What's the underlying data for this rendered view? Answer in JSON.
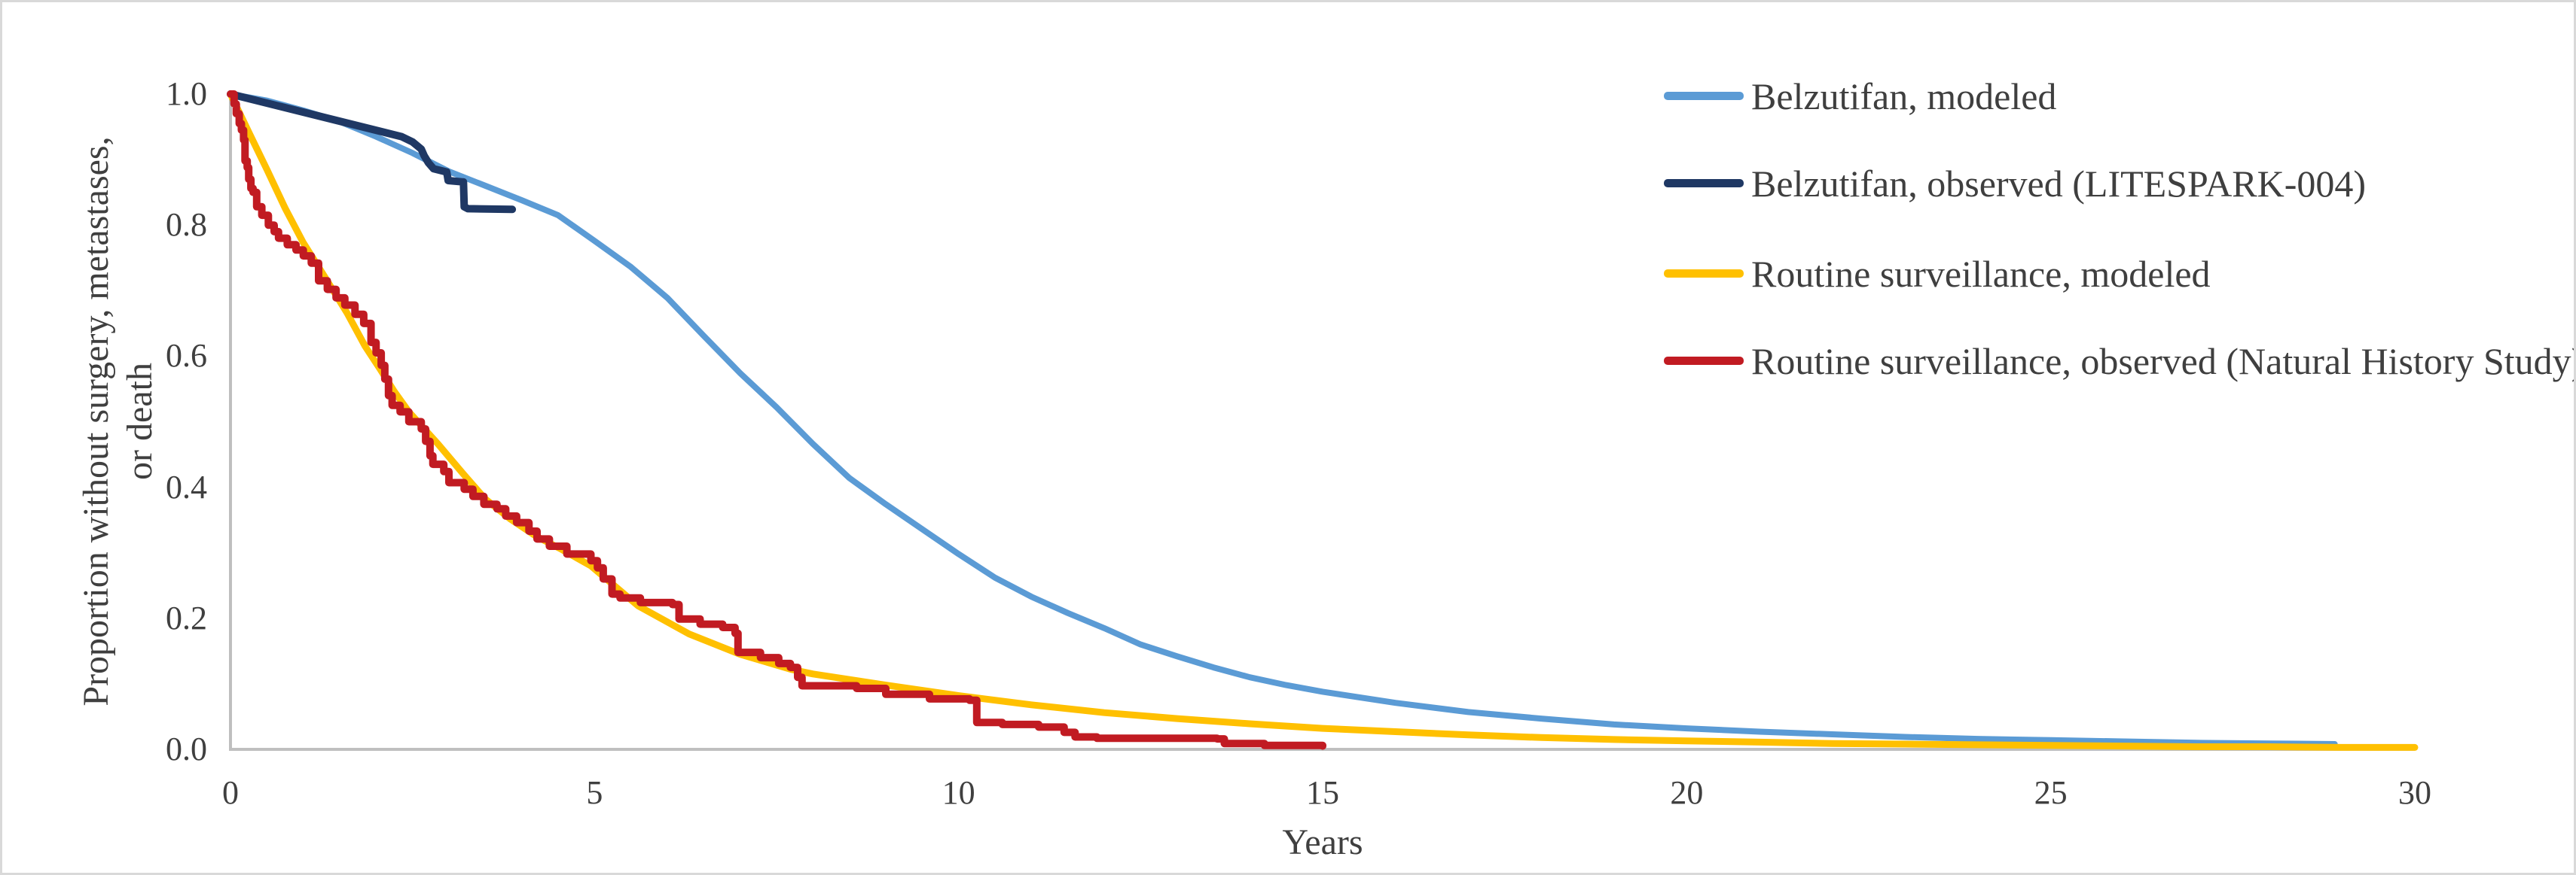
{
  "figure": {
    "background_color": "#ffffff",
    "border_color": "#d9d9d9",
    "axis_line_color": "#bfbfbf",
    "text_color": "#3f3f3f"
  },
  "chart_data": {
    "type": "line",
    "title": "",
    "xlabel": "Years",
    "ylabel": "Proportion without surgery, metastases, or death",
    "ylabel_lines": [
      "Proportion without surgery, metastases,",
      "or death"
    ],
    "xlim": [
      0,
      30
    ],
    "ylim": [
      0.0,
      1.0
    ],
    "grid": "off",
    "legend_position": "top-right",
    "x_ticks": [
      "0",
      "5",
      "10",
      "15",
      "20",
      "25",
      "30"
    ],
    "y_ticks": [
      "1.0",
      "0.8",
      "0.6",
      "0.4",
      "0.2",
      "0.0"
    ],
    "series": [
      {
        "name": "Belzutifan, modeled",
        "color": "#5b9bd5",
        "render": "linear",
        "line_width": 8,
        "points": [
          [
            0,
            1.0
          ],
          [
            0.5,
            0.99
          ],
          [
            1,
            0.975
          ],
          [
            1.5,
            0.958
          ],
          [
            2,
            0.935
          ],
          [
            2.5,
            0.91
          ],
          [
            3,
            0.882
          ],
          [
            3.5,
            0.86
          ],
          [
            4,
            0.838
          ],
          [
            4.5,
            0.815
          ],
          [
            5,
            0.776
          ],
          [
            5.5,
            0.736
          ],
          [
            6,
            0.689
          ],
          [
            6.5,
            0.631
          ],
          [
            7,
            0.574
          ],
          [
            7.5,
            0.522
          ],
          [
            8,
            0.466
          ],
          [
            8.5,
            0.414
          ],
          [
            9,
            0.374
          ],
          [
            9.5,
            0.336
          ],
          [
            10,
            0.298
          ],
          [
            10.5,
            0.262
          ],
          [
            11,
            0.233
          ],
          [
            11.5,
            0.208
          ],
          [
            12,
            0.185
          ],
          [
            12.5,
            0.16
          ],
          [
            13,
            0.142
          ],
          [
            13.5,
            0.125
          ],
          [
            14,
            0.11
          ],
          [
            14.5,
            0.098
          ],
          [
            15,
            0.088
          ],
          [
            16,
            0.071
          ],
          [
            17,
            0.057
          ],
          [
            18,
            0.047
          ],
          [
            19,
            0.038
          ],
          [
            20,
            0.032
          ],
          [
            21,
            0.027
          ],
          [
            22,
            0.023
          ],
          [
            23,
            0.019
          ],
          [
            24,
            0.016
          ],
          [
            25,
            0.014
          ],
          [
            26,
            0.012
          ],
          [
            27,
            0.01
          ],
          [
            28,
            0.009
          ],
          [
            28.9,
            0.008
          ]
        ]
      },
      {
        "name": "Belzutifan, observed (LITESPARK-004)",
        "color": "#1f3864",
        "render": "linear",
        "line_width": 10,
        "points": [
          [
            0,
            1.0
          ],
          [
            2.35,
            0.935
          ],
          [
            2.5,
            0.927
          ],
          [
            2.62,
            0.916
          ],
          [
            2.66,
            0.906
          ],
          [
            2.72,
            0.895
          ],
          [
            2.79,
            0.886
          ],
          [
            2.97,
            0.881
          ],
          [
            2.99,
            0.868
          ],
          [
            3.18,
            0.866
          ],
          [
            3.2,
            0.866
          ],
          [
            3.21,
            0.828
          ],
          [
            3.26,
            0.825
          ],
          [
            3.87,
            0.824
          ]
        ]
      },
      {
        "name": "Routine surveillance, modeled",
        "color": "#ffc000",
        "render": "linear",
        "line_width": 9,
        "points": [
          [
            0,
            1.0
          ],
          [
            0.25,
            0.942
          ],
          [
            0.5,
            0.885
          ],
          [
            0.75,
            0.826
          ],
          [
            1,
            0.773
          ],
          [
            1.3,
            0.72
          ],
          [
            1.6,
            0.666
          ],
          [
            1.85,
            0.615
          ],
          [
            2.05,
            0.581
          ],
          [
            2.25,
            0.546
          ],
          [
            2.45,
            0.515
          ],
          [
            2.85,
            0.466
          ],
          [
            3.2,
            0.42
          ],
          [
            3.5,
            0.382
          ],
          [
            3.85,
            0.351
          ],
          [
            4.2,
            0.325
          ],
          [
            4.55,
            0.305
          ],
          [
            4.95,
            0.28
          ],
          [
            5.6,
            0.219
          ],
          [
            6.3,
            0.176
          ],
          [
            7,
            0.145
          ],
          [
            7.7,
            0.122
          ],
          [
            8,
            0.115
          ],
          [
            9,
            0.098
          ],
          [
            10,
            0.082
          ],
          [
            11,
            0.068
          ],
          [
            12,
            0.056
          ],
          [
            13,
            0.047
          ],
          [
            14,
            0.039
          ],
          [
            15,
            0.032
          ],
          [
            16,
            0.027
          ],
          [
            17,
            0.022
          ],
          [
            18,
            0.018
          ],
          [
            19,
            0.015
          ],
          [
            20,
            0.013
          ],
          [
            21,
            0.011
          ],
          [
            22,
            0.009
          ],
          [
            23,
            0.008
          ],
          [
            24,
            0.007
          ],
          [
            25,
            0.006
          ],
          [
            26,
            0.005
          ],
          [
            27,
            0.004
          ],
          [
            28,
            0.004
          ],
          [
            29,
            0.003
          ],
          [
            30,
            0.003
          ]
        ]
      },
      {
        "name": "Routine surveillance, observed (Natural History Study)",
        "color": "#c11b22",
        "render": "step",
        "line_width": 10,
        "points": [
          [
            0,
            1.0
          ],
          [
            0.05,
            0.985
          ],
          [
            0.08,
            0.97
          ],
          [
            0.12,
            0.955
          ],
          [
            0.15,
            0.945
          ],
          [
            0.18,
            0.93
          ],
          [
            0.2,
            0.898
          ],
          [
            0.23,
            0.888
          ],
          [
            0.25,
            0.87
          ],
          [
            0.28,
            0.856
          ],
          [
            0.31,
            0.85
          ],
          [
            0.36,
            0.828
          ],
          [
            0.43,
            0.815
          ],
          [
            0.52,
            0.8
          ],
          [
            0.6,
            0.79
          ],
          [
            0.66,
            0.78
          ],
          [
            0.78,
            0.77
          ],
          [
            0.9,
            0.762
          ],
          [
            1.0,
            0.753
          ],
          [
            1.11,
            0.742
          ],
          [
            1.21,
            0.715
          ],
          [
            1.33,
            0.702
          ],
          [
            1.45,
            0.689
          ],
          [
            1.57,
            0.678
          ],
          [
            1.71,
            0.664
          ],
          [
            1.83,
            0.65
          ],
          [
            1.93,
            0.621
          ],
          [
            2.0,
            0.605
          ],
          [
            2.07,
            0.586
          ],
          [
            2.12,
            0.565
          ],
          [
            2.17,
            0.54
          ],
          [
            2.22,
            0.525
          ],
          [
            2.33,
            0.515
          ],
          [
            2.45,
            0.5
          ],
          [
            2.62,
            0.489
          ],
          [
            2.68,
            0.47
          ],
          [
            2.74,
            0.448
          ],
          [
            2.78,
            0.435
          ],
          [
            2.93,
            0.424
          ],
          [
            3.0,
            0.407
          ],
          [
            3.21,
            0.397
          ],
          [
            3.33,
            0.386
          ],
          [
            3.48,
            0.374
          ],
          [
            3.66,
            0.367
          ],
          [
            3.78,
            0.356
          ],
          [
            3.93,
            0.346
          ],
          [
            4.1,
            0.333
          ],
          [
            4.21,
            0.321
          ],
          [
            4.38,
            0.31
          ],
          [
            4.62,
            0.298
          ],
          [
            4.95,
            0.288
          ],
          [
            5.04,
            0.277
          ],
          [
            5.12,
            0.26
          ],
          [
            5.24,
            0.237
          ],
          [
            5.35,
            0.231
          ],
          [
            5.63,
            0.224
          ],
          [
            6.07,
            0.221
          ],
          [
            6.16,
            0.199
          ],
          [
            6.45,
            0.191
          ],
          [
            6.76,
            0.186
          ],
          [
            6.93,
            0.177
          ],
          [
            6.97,
            0.148
          ],
          [
            7.28,
            0.14
          ],
          [
            7.53,
            0.131
          ],
          [
            7.69,
            0.125
          ],
          [
            7.79,
            0.11
          ],
          [
            7.85,
            0.097
          ],
          [
            8.6,
            0.093
          ],
          [
            9.0,
            0.084
          ],
          [
            9.6,
            0.077
          ],
          [
            10.15,
            0.075
          ],
          [
            10.25,
            0.041
          ],
          [
            10.6,
            0.038
          ],
          [
            11.1,
            0.034
          ],
          [
            11.45,
            0.026
          ],
          [
            11.6,
            0.019
          ],
          [
            11.9,
            0.017
          ],
          [
            13.55,
            0.016
          ],
          [
            13.65,
            0.009
          ],
          [
            14.2,
            0.006
          ],
          [
            15.0,
            0.005
          ]
        ]
      }
    ]
  }
}
